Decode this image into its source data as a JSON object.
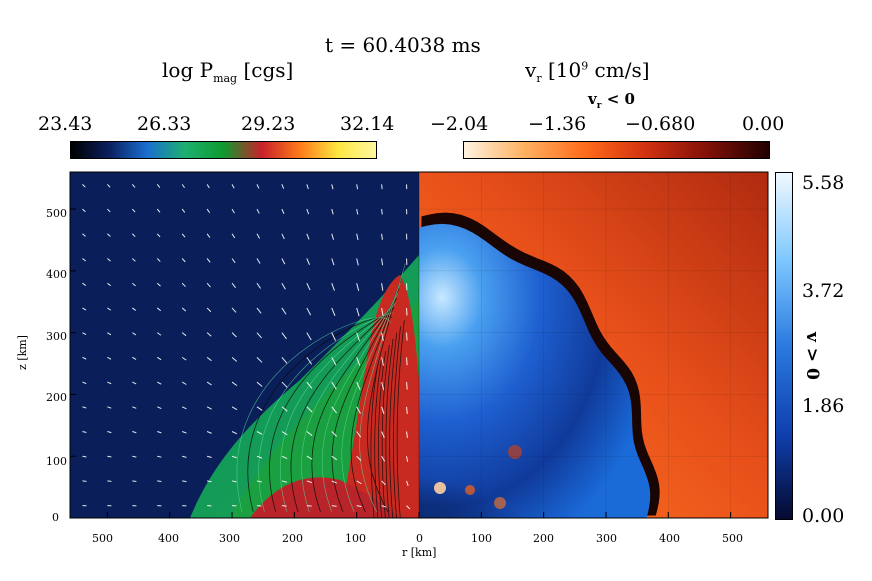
{
  "chart_data": {
    "type": "heatmap",
    "title": "t = 60.4038 ms",
    "left_panel": {
      "quantity": "log P",
      "quantity_sub": "mag",
      "quantity_unit": "[cgs]",
      "colorbar_ticks": [
        "23.43",
        "26.33",
        "29.23",
        "32.14"
      ],
      "colorbar_range": [
        23.43,
        32.14
      ],
      "colormap_stops": [
        "#000000",
        "#0a1f5e",
        "#1a6fd0",
        "#1db070",
        "#0e9a2e",
        "#c8202a",
        "#ff7a1a",
        "#ffe640",
        "#fff8a0"
      ]
    },
    "right_panel": {
      "quantity": "v",
      "quantity_sub": "r",
      "quantity_unit": "[10",
      "quantity_sup": "9",
      "quantity_unit_tail": " cm/s]",
      "neg_label_v": "v",
      "neg_label_sub": "r",
      "neg_label_tail": " < 0",
      "neg_colorbar_ticks": [
        "−2.04",
        "−1.36",
        "−0.680",
        "0.00"
      ],
      "neg_colorbar_range": [
        -2.04,
        0.0
      ],
      "pos_colorbar_ticks": [
        "5.58",
        "3.72",
        "1.86",
        "0.00"
      ],
      "pos_colorbar_range": [
        0.0,
        5.58
      ],
      "pos_label": "v  > 0",
      "pos_label_sub": "r",
      "neg_colors": [
        "#fff3e0",
        "#ffb060",
        "#ff6a1a",
        "#d03010",
        "#801008",
        "#200000"
      ],
      "pos_colors": [
        "#f0f8ff",
        "#7ec8ff",
        "#2a7ae0",
        "#1040b0",
        "#050a30"
      ]
    },
    "xlabel": "r [km]",
    "ylabel": "z [km]",
    "xticks_left": [
      "500",
      "400",
      "300",
      "200",
      "100",
      "0"
    ],
    "xticks_right": [
      "100",
      "200",
      "300",
      "400",
      "500"
    ],
    "yticks": [
      "0",
      "100",
      "200",
      "300",
      "400",
      "500"
    ],
    "xlim": [
      -560,
      560
    ],
    "ylim": [
      0,
      560
    ],
    "shock_radius_axis_km": 470,
    "shock_radius_equator_km": 365
  }
}
